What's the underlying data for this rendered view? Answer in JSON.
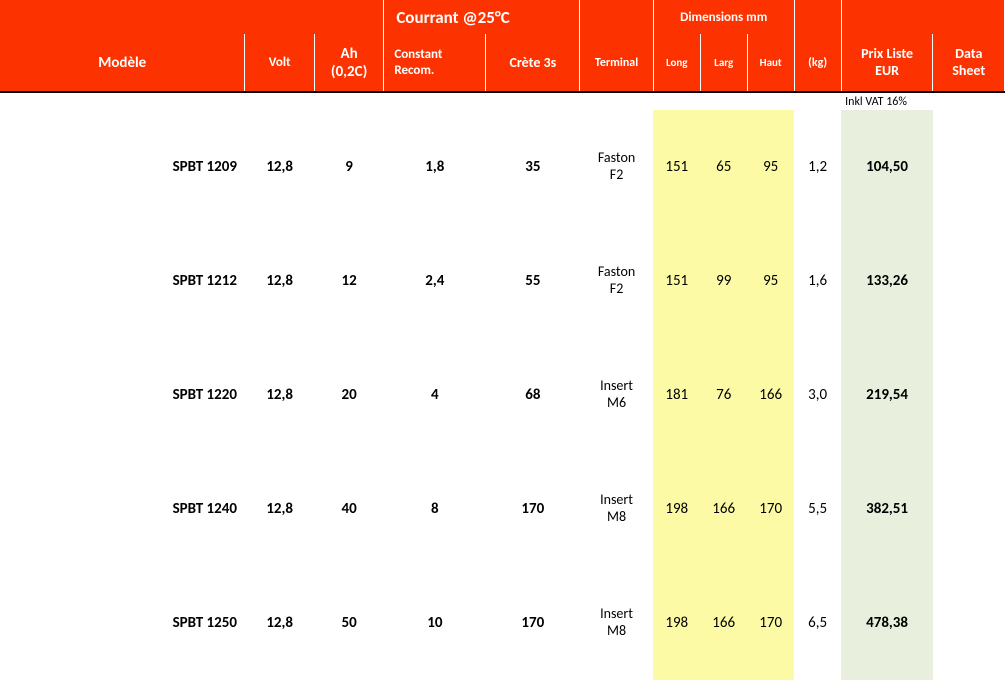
{
  "colors": {
    "header_bg": "#fc3200",
    "header_fg": "#ffffff",
    "dim_highlight": "#fcfaa4",
    "price_highlight": "#e8efdd",
    "border_top": "#000000",
    "body_bg": "#ffffff"
  },
  "header": {
    "group_current": "Courrant @25°C",
    "group_dimensions": "Dimensions mm",
    "model": "Modèle",
    "volt": "Volt",
    "ah_line1": "Ah",
    "ah_line2": "(0,2C)",
    "constant_line1": "Constant",
    "constant_line2": "Recom.",
    "crete": "Crète 3s",
    "terminal": "Terminal",
    "long": "Long",
    "larg": "Larg",
    "haut": "Haut",
    "kg": "(kg)",
    "prix_line1": "Prix Liste",
    "prix_line2": "EUR",
    "datasheet_line1": "Data",
    "datasheet_line2": "Sheet",
    "vat_note": "Inkl VAT 16%"
  },
  "rows": [
    {
      "model": "SPBT 1209",
      "volt": "12,8",
      "ah": "9",
      "const": "1,8",
      "crete": "35",
      "terminal": "Faston F2",
      "long": "151",
      "larg": "65",
      "haut": "95",
      "kg": "1,2",
      "prix": "104,50"
    },
    {
      "model": "SPBT 1212",
      "volt": "12,8",
      "ah": "12",
      "const": "2,4",
      "crete": "55",
      "terminal": "Faston F2",
      "long": "151",
      "larg": "99",
      "haut": "95",
      "kg": "1,6",
      "prix": "133,26"
    },
    {
      "model": "SPBT 1220",
      "volt": "12,8",
      "ah": "20",
      "const": "4",
      "crete": "68",
      "terminal": "Insert M6",
      "long": "181",
      "larg": "76",
      "haut": "166",
      "kg": "3,0",
      "prix": "219,54"
    },
    {
      "model": "SPBT 1240",
      "volt": "12,8",
      "ah": "40",
      "const": "8",
      "crete": "170",
      "terminal": "Insert M8",
      "long": "198",
      "larg": "166",
      "haut": "170",
      "kg": "5,5",
      "prix": "382,51"
    },
    {
      "model": "SPBT 1250",
      "volt": "12,8",
      "ah": "50",
      "const": "10",
      "crete": "170",
      "terminal": "Insert M8",
      "long": "198",
      "larg": "166",
      "haut": "170",
      "kg": "6,5",
      "prix": "478,38"
    }
  ]
}
